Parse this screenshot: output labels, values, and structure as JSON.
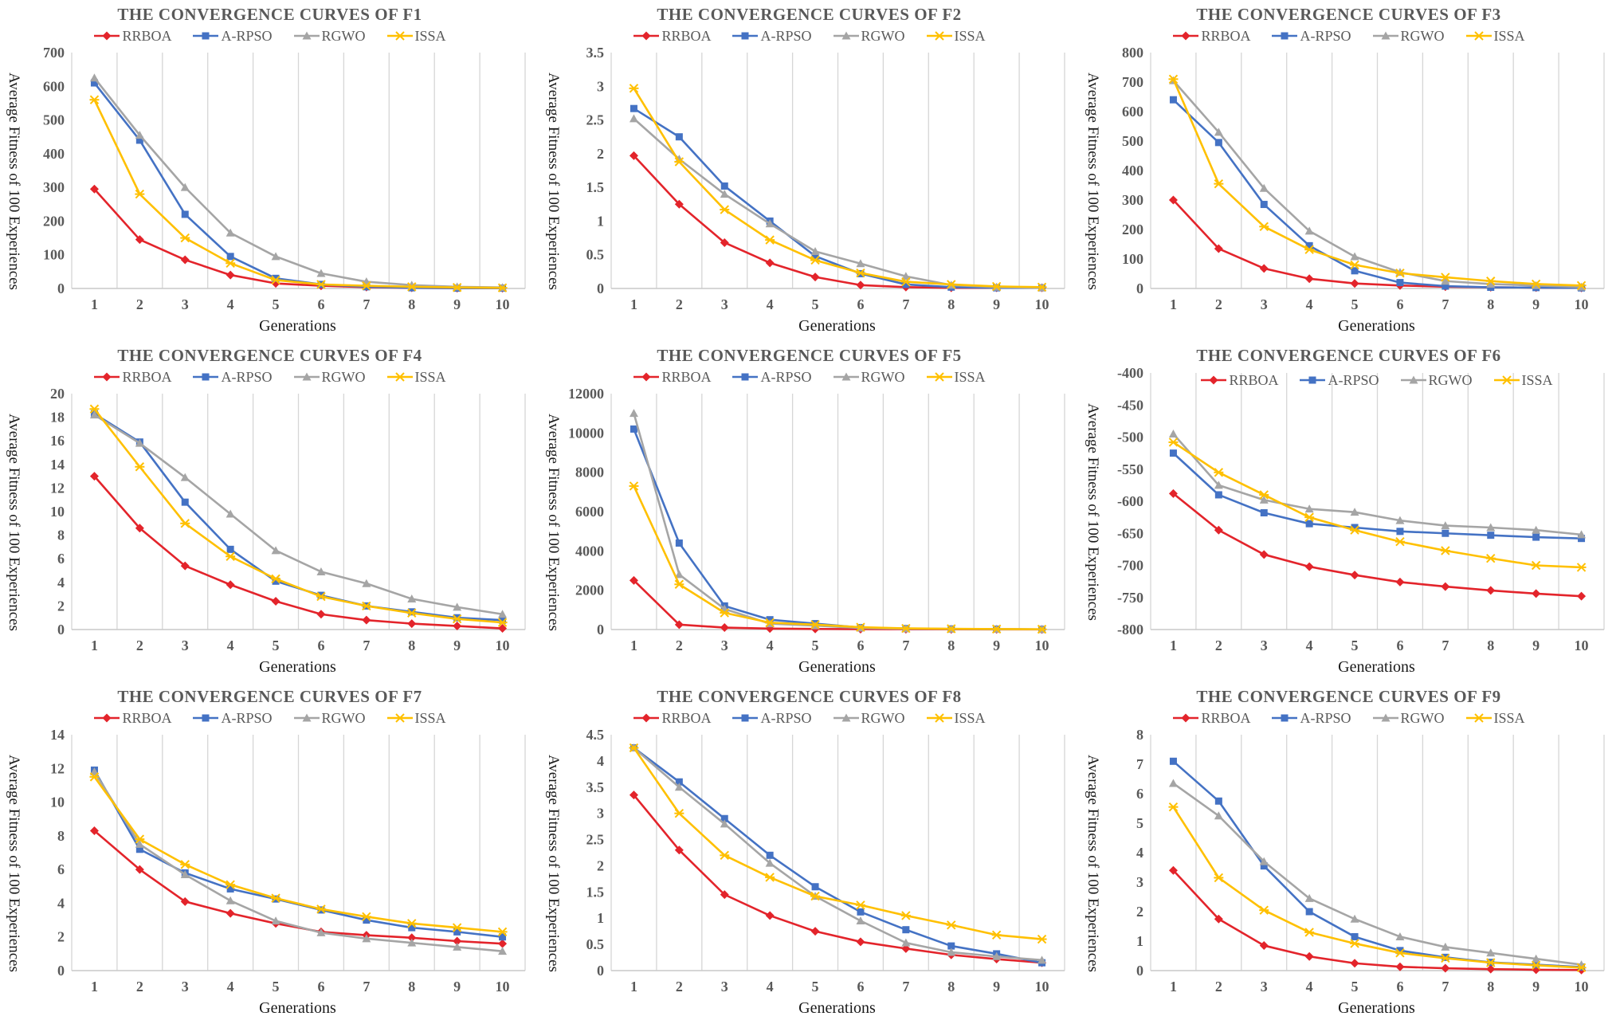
{
  "shared": {
    "xlabel": "Generations",
    "ylabel": "Average Fitness of 100 Experiences",
    "grid_color": "#D6D6D6",
    "axis_color": "#C9C9C9",
    "text_color": "#595959",
    "series_style": [
      {
        "name": "RRBOA",
        "color": "#E3242B",
        "marker": "diamond"
      },
      {
        "name": "A-RPSO",
        "color": "#4472C4",
        "marker": "square"
      },
      {
        "name": "RGWO",
        "color": "#A5A5A5",
        "marker": "triangle"
      },
      {
        "name": "ISSA",
        "color": "#FFC000",
        "marker": "star"
      }
    ]
  },
  "chart_data": [
    {
      "type": "line",
      "title": "THE CONVERGENCE CURVES OF F1",
      "xlabel": "Generations",
      "ylabel": "Average Fitness of 100 Experiences",
      "x": [
        1,
        2,
        3,
        4,
        5,
        6,
        7,
        8,
        9,
        10
      ],
      "ylim": [
        0,
        700
      ],
      "ytick_step": 100,
      "legend_inside": false,
      "series": [
        {
          "name": "RRBOA",
          "values": [
            295,
            145,
            85,
            40,
            15,
            8,
            4,
            2,
            1,
            1
          ]
        },
        {
          "name": "A-RPSO",
          "values": [
            610,
            440,
            220,
            95,
            30,
            12,
            5,
            2,
            1,
            1
          ]
        },
        {
          "name": "RGWO",
          "values": [
            625,
            455,
            300,
            165,
            95,
            45,
            20,
            10,
            5,
            3
          ]
        },
        {
          "name": "ISSA",
          "values": [
            560,
            280,
            150,
            75,
            25,
            12,
            8,
            5,
            3,
            2
          ]
        }
      ]
    },
    {
      "type": "line",
      "title": "THE CONVERGENCE CURVES OF F2",
      "xlabel": "Generations",
      "ylabel": "Average Fitness of 100 Experiences",
      "x": [
        1,
        2,
        3,
        4,
        5,
        6,
        7,
        8,
        9,
        10
      ],
      "ylim": [
        0,
        3.5
      ],
      "ytick_step": 0.5,
      "legend_inside": false,
      "series": [
        {
          "name": "RRBOA",
          "values": [
            1.97,
            1.25,
            0.68,
            0.38,
            0.17,
            0.05,
            0.02,
            0.01,
            0.01,
            0.01
          ]
        },
        {
          "name": "A-RPSO",
          "values": [
            2.67,
            2.25,
            1.52,
            1.0,
            0.48,
            0.22,
            0.06,
            0.02,
            0.01,
            0.01
          ]
        },
        {
          "name": "RGWO",
          "values": [
            2.52,
            1.92,
            1.4,
            0.96,
            0.55,
            0.37,
            0.18,
            0.05,
            0.02,
            0.01
          ]
        },
        {
          "name": "ISSA",
          "values": [
            2.97,
            1.88,
            1.17,
            0.72,
            0.42,
            0.23,
            0.1,
            0.06,
            0.03,
            0.02
          ]
        }
      ]
    },
    {
      "type": "line",
      "title": "THE CONVERGENCE CURVES OF F3",
      "xlabel": "Generations",
      "ylabel": "Average Fitness of 100 Experiences",
      "x": [
        1,
        2,
        3,
        4,
        5,
        6,
        7,
        8,
        9,
        10
      ],
      "ylim": [
        0,
        800
      ],
      "ytick_step": 100,
      "legend_inside": false,
      "series": [
        {
          "name": "RRBOA",
          "values": [
            300,
            135,
            68,
            33,
            17,
            10,
            6,
            4,
            3,
            2
          ]
        },
        {
          "name": "A-RPSO",
          "values": [
            640,
            495,
            285,
            145,
            60,
            20,
            8,
            4,
            3,
            2
          ]
        },
        {
          "name": "RGWO",
          "values": [
            705,
            530,
            340,
            195,
            108,
            55,
            25,
            15,
            10,
            5
          ]
        },
        {
          "name": "ISSA",
          "values": [
            710,
            355,
            210,
            132,
            80,
            52,
            38,
            25,
            15,
            10
          ]
        }
      ]
    },
    {
      "type": "line",
      "title": "THE CONVERGENCE CURVES OF F4",
      "xlabel": "Generations",
      "ylabel": "Average Fitness of 100 Experiences",
      "x": [
        1,
        2,
        3,
        4,
        5,
        6,
        7,
        8,
        9,
        10
      ],
      "ylim": [
        0,
        20
      ],
      "ytick_step": 2,
      "legend_inside": false,
      "series": [
        {
          "name": "RRBOA",
          "values": [
            13.0,
            8.6,
            5.4,
            3.8,
            2.4,
            1.3,
            0.8,
            0.5,
            0.3,
            0.1
          ]
        },
        {
          "name": "A-RPSO",
          "values": [
            18.3,
            15.9,
            10.8,
            6.8,
            4.1,
            2.9,
            2.0,
            1.5,
            1.0,
            0.8
          ]
        },
        {
          "name": "RGWO",
          "values": [
            18.2,
            15.8,
            12.9,
            9.8,
            6.7,
            4.9,
            3.9,
            2.6,
            1.9,
            1.3
          ]
        },
        {
          "name": "ISSA",
          "values": [
            18.7,
            13.8,
            9.0,
            6.2,
            4.3,
            2.8,
            2.0,
            1.4,
            0.9,
            0.6
          ]
        }
      ]
    },
    {
      "type": "line",
      "title": "THE CONVERGENCE CURVES OF F5",
      "xlabel": "Generations",
      "ylabel": "Average Fitness of 100 Experiences",
      "x": [
        1,
        2,
        3,
        4,
        5,
        6,
        7,
        8,
        9,
        10
      ],
      "ylim": [
        0,
        12000
      ],
      "ytick_step": 2000,
      "legend_inside": false,
      "series": [
        {
          "name": "RRBOA",
          "values": [
            2500,
            250,
            100,
            50,
            30,
            20,
            15,
            10,
            8,
            5
          ]
        },
        {
          "name": "A-RPSO",
          "values": [
            10200,
            4400,
            1200,
            500,
            300,
            100,
            50,
            30,
            20,
            10
          ]
        },
        {
          "name": "RGWO",
          "values": [
            11000,
            2800,
            1050,
            300,
            200,
            80,
            40,
            25,
            15,
            10
          ]
        },
        {
          "name": "ISSA",
          "values": [
            7300,
            2300,
            850,
            350,
            250,
            120,
            60,
            40,
            25,
            15
          ]
        }
      ]
    },
    {
      "type": "line",
      "title": "THE CONVERGENCE CURVES OF F6",
      "xlabel": "Generations",
      "ylabel": "Average Fitness of 100 Experiences",
      "x": [
        1,
        2,
        3,
        4,
        5,
        6,
        7,
        8,
        9,
        10
      ],
      "ylim": [
        -800,
        -400
      ],
      "ytick_step": 50,
      "legend_inside": true,
      "series": [
        {
          "name": "RRBOA",
          "values": [
            -588,
            -645,
            -683,
            -702,
            -715,
            -726,
            -733,
            -739,
            -744,
            -748
          ]
        },
        {
          "name": "A-RPSO",
          "values": [
            -525,
            -590,
            -618,
            -635,
            -641,
            -647,
            -650,
            -653,
            -656,
            -658
          ]
        },
        {
          "name": "RGWO",
          "values": [
            -495,
            -575,
            -598,
            -612,
            -617,
            -630,
            -638,
            -641,
            -645,
            -652
          ]
        },
        {
          "name": "ISSA",
          "values": [
            -508,
            -555,
            -590,
            -625,
            -645,
            -663,
            -677,
            -689,
            -700,
            -703
          ]
        }
      ]
    },
    {
      "type": "line",
      "title": "THE CONVERGENCE CURVES OF F7",
      "xlabel": "Generations",
      "ylabel": "Average Fitness of 100 Experiences",
      "x": [
        1,
        2,
        3,
        4,
        5,
        6,
        7,
        8,
        9,
        10
      ],
      "ylim": [
        0,
        14
      ],
      "ytick_step": 2,
      "legend_inside": false,
      "series": [
        {
          "name": "RRBOA",
          "values": [
            8.3,
            6.0,
            4.1,
            3.4,
            2.8,
            2.3,
            2.1,
            1.95,
            1.75,
            1.6
          ]
        },
        {
          "name": "A-RPSO",
          "values": [
            11.9,
            7.2,
            5.8,
            4.85,
            4.25,
            3.6,
            3.0,
            2.55,
            2.3,
            2.0
          ]
        },
        {
          "name": "RGWO",
          "values": [
            11.8,
            7.5,
            5.7,
            4.15,
            2.95,
            2.25,
            1.9,
            1.65,
            1.4,
            1.15
          ]
        },
        {
          "name": "ISSA",
          "values": [
            11.5,
            7.8,
            6.3,
            5.1,
            4.3,
            3.65,
            3.2,
            2.8,
            2.55,
            2.3
          ]
        }
      ]
    },
    {
      "type": "line",
      "title": "THE CONVERGENCE CURVES OF F8",
      "xlabel": "Generations",
      "ylabel": "Average Fitness of 100 Experiences",
      "x": [
        1,
        2,
        3,
        4,
        5,
        6,
        7,
        8,
        9,
        10
      ],
      "ylim": [
        0,
        4.5
      ],
      "ytick_step": 0.5,
      "legend_inside": false,
      "series": [
        {
          "name": "RRBOA",
          "values": [
            3.35,
            2.3,
            1.45,
            1.05,
            0.75,
            0.55,
            0.42,
            0.3,
            0.22,
            0.15
          ]
        },
        {
          "name": "A-RPSO",
          "values": [
            4.25,
            3.6,
            2.9,
            2.2,
            1.6,
            1.12,
            0.78,
            0.47,
            0.32,
            0.15
          ]
        },
        {
          "name": "RGWO",
          "values": [
            4.25,
            3.5,
            2.8,
            2.05,
            1.42,
            0.95,
            0.53,
            0.35,
            0.27,
            0.2
          ]
        },
        {
          "name": "ISSA",
          "values": [
            4.25,
            3.0,
            2.2,
            1.78,
            1.42,
            1.25,
            1.05,
            0.87,
            0.68,
            0.6
          ]
        }
      ]
    },
    {
      "type": "line",
      "title": "THE CONVERGENCE CURVES OF F9",
      "xlabel": "Generations",
      "ylabel": "Average Fitness of 100 Experiences",
      "x": [
        1,
        2,
        3,
        4,
        5,
        6,
        7,
        8,
        9,
        10
      ],
      "ylim": [
        0,
        8
      ],
      "ytick_step": 1,
      "legend_inside": false,
      "series": [
        {
          "name": "RRBOA",
          "values": [
            3.4,
            1.75,
            0.85,
            0.48,
            0.25,
            0.13,
            0.08,
            0.05,
            0.03,
            0.02
          ]
        },
        {
          "name": "A-RPSO",
          "values": [
            7.1,
            5.75,
            3.55,
            2.0,
            1.15,
            0.68,
            0.45,
            0.28,
            0.2,
            0.12
          ]
        },
        {
          "name": "RGWO",
          "values": [
            6.35,
            5.25,
            3.7,
            2.45,
            1.75,
            1.15,
            0.8,
            0.6,
            0.4,
            0.2
          ]
        },
        {
          "name": "ISSA",
          "values": [
            5.55,
            3.15,
            2.05,
            1.3,
            0.92,
            0.6,
            0.42,
            0.27,
            0.18,
            0.1
          ]
        }
      ]
    }
  ]
}
